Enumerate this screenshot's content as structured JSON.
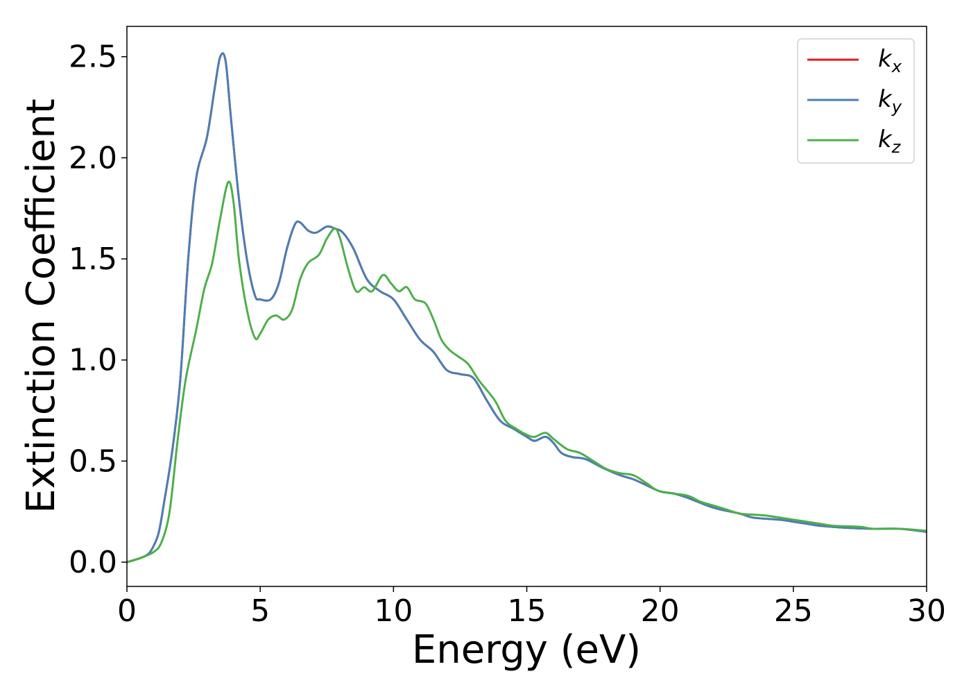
{
  "chart_data": {
    "type": "line",
    "xlabel": "Energy (eV)",
    "ylabel": "Extinction Coefficient",
    "xlim": [
      0,
      30
    ],
    "ylim": [
      -0.12,
      2.65
    ],
    "xticks": [
      "0",
      "5",
      "10",
      "15",
      "20",
      "25",
      "30"
    ],
    "xtick_values": [
      0,
      5,
      10,
      15,
      20,
      25,
      30
    ],
    "yticks": [
      "0.0",
      "0.5",
      "1.0",
      "1.5",
      "2.0",
      "2.5"
    ],
    "ytick_values": [
      0.0,
      0.5,
      1.0,
      1.5,
      2.0,
      2.5
    ],
    "grid": false,
    "legend_position": "top-right",
    "series": [
      {
        "name": "k_x",
        "label_main": "k",
        "label_sub": "x",
        "color": "#e41a1c",
        "points": [
          [
            0,
            0
          ],
          [
            0.5,
            0.02
          ],
          [
            0.8,
            0.04
          ],
          [
            1.0,
            0.08
          ],
          [
            1.2,
            0.15
          ],
          [
            1.4,
            0.3
          ],
          [
            1.7,
            0.55
          ],
          [
            2.0,
            0.9
          ],
          [
            2.3,
            1.5
          ],
          [
            2.6,
            1.9
          ],
          [
            3.0,
            2.1
          ],
          [
            3.3,
            2.35
          ],
          [
            3.5,
            2.5
          ],
          [
            3.7,
            2.48
          ],
          [
            3.9,
            2.2
          ],
          [
            4.2,
            1.8
          ],
          [
            4.5,
            1.5
          ],
          [
            4.8,
            1.32
          ],
          [
            5.0,
            1.3
          ],
          [
            5.4,
            1.3
          ],
          [
            5.7,
            1.38
          ],
          [
            6.0,
            1.55
          ],
          [
            6.3,
            1.67
          ],
          [
            6.5,
            1.68
          ],
          [
            6.8,
            1.64
          ],
          [
            7.1,
            1.63
          ],
          [
            7.5,
            1.66
          ],
          [
            7.8,
            1.65
          ],
          [
            8.1,
            1.63
          ],
          [
            8.5,
            1.55
          ],
          [
            9.0,
            1.4
          ],
          [
            9.5,
            1.34
          ],
          [
            10.0,
            1.3
          ],
          [
            10.5,
            1.2
          ],
          [
            11.0,
            1.1
          ],
          [
            11.5,
            1.04
          ],
          [
            12.0,
            0.95
          ],
          [
            12.5,
            0.93
          ],
          [
            13.0,
            0.91
          ],
          [
            13.5,
            0.8
          ],
          [
            14.0,
            0.7
          ],
          [
            14.5,
            0.66
          ],
          [
            15.0,
            0.62
          ],
          [
            15.3,
            0.6
          ],
          [
            15.7,
            0.62
          ],
          [
            16.0,
            0.59
          ],
          [
            16.3,
            0.54
          ],
          [
            16.7,
            0.52
          ],
          [
            17.2,
            0.51
          ],
          [
            17.8,
            0.47
          ],
          [
            18.5,
            0.43
          ],
          [
            19.0,
            0.41
          ],
          [
            19.5,
            0.38
          ],
          [
            20.0,
            0.35
          ],
          [
            20.5,
            0.34
          ],
          [
            21.0,
            0.32
          ],
          [
            22.0,
            0.27
          ],
          [
            23.0,
            0.24
          ],
          [
            23.5,
            0.22
          ],
          [
            24.5,
            0.21
          ],
          [
            25.0,
            0.2
          ],
          [
            25.5,
            0.19
          ],
          [
            26.0,
            0.18
          ],
          [
            27.0,
            0.17
          ],
          [
            28.0,
            0.165
          ],
          [
            29.0,
            0.165
          ],
          [
            30.0,
            0.15
          ]
        ]
      },
      {
        "name": "k_y",
        "label_main": "k",
        "label_sub": "y",
        "color": "#4a7fb5",
        "points": [
          [
            0,
            0
          ],
          [
            0.5,
            0.02
          ],
          [
            0.8,
            0.04
          ],
          [
            1.0,
            0.08
          ],
          [
            1.2,
            0.15
          ],
          [
            1.4,
            0.3
          ],
          [
            1.7,
            0.55
          ],
          [
            2.0,
            0.9
          ],
          [
            2.3,
            1.5
          ],
          [
            2.6,
            1.9
          ],
          [
            3.0,
            2.1
          ],
          [
            3.3,
            2.35
          ],
          [
            3.5,
            2.5
          ],
          [
            3.7,
            2.48
          ],
          [
            3.9,
            2.2
          ],
          [
            4.2,
            1.8
          ],
          [
            4.5,
            1.5
          ],
          [
            4.8,
            1.32
          ],
          [
            5.0,
            1.3
          ],
          [
            5.4,
            1.3
          ],
          [
            5.7,
            1.38
          ],
          [
            6.0,
            1.55
          ],
          [
            6.3,
            1.67
          ],
          [
            6.5,
            1.68
          ],
          [
            6.8,
            1.64
          ],
          [
            7.1,
            1.63
          ],
          [
            7.5,
            1.66
          ],
          [
            7.8,
            1.65
          ],
          [
            8.1,
            1.63
          ],
          [
            8.5,
            1.55
          ],
          [
            9.0,
            1.4
          ],
          [
            9.5,
            1.34
          ],
          [
            10.0,
            1.3
          ],
          [
            10.5,
            1.2
          ],
          [
            11.0,
            1.1
          ],
          [
            11.5,
            1.04
          ],
          [
            12.0,
            0.95
          ],
          [
            12.5,
            0.93
          ],
          [
            13.0,
            0.91
          ],
          [
            13.5,
            0.8
          ],
          [
            14.0,
            0.7
          ],
          [
            14.5,
            0.66
          ],
          [
            15.0,
            0.62
          ],
          [
            15.3,
            0.6
          ],
          [
            15.7,
            0.62
          ],
          [
            16.0,
            0.59
          ],
          [
            16.3,
            0.54
          ],
          [
            16.7,
            0.52
          ],
          [
            17.2,
            0.51
          ],
          [
            17.8,
            0.47
          ],
          [
            18.5,
            0.43
          ],
          [
            19.0,
            0.41
          ],
          [
            19.5,
            0.38
          ],
          [
            20.0,
            0.35
          ],
          [
            20.5,
            0.34
          ],
          [
            21.0,
            0.32
          ],
          [
            22.0,
            0.27
          ],
          [
            23.0,
            0.24
          ],
          [
            23.5,
            0.22
          ],
          [
            24.5,
            0.21
          ],
          [
            25.0,
            0.2
          ],
          [
            25.5,
            0.19
          ],
          [
            26.0,
            0.18
          ],
          [
            27.0,
            0.17
          ],
          [
            28.0,
            0.165
          ],
          [
            29.0,
            0.165
          ],
          [
            30.0,
            0.15
          ]
        ]
      },
      {
        "name": "k_z",
        "label_main": "k",
        "label_sub": "z",
        "color": "#4daf4a",
        "points": [
          [
            0,
            0
          ],
          [
            0.5,
            0.02
          ],
          [
            1.0,
            0.05
          ],
          [
            1.3,
            0.1
          ],
          [
            1.6,
            0.25
          ],
          [
            1.9,
            0.6
          ],
          [
            2.2,
            0.9
          ],
          [
            2.6,
            1.15
          ],
          [
            2.9,
            1.35
          ],
          [
            3.2,
            1.48
          ],
          [
            3.5,
            1.7
          ],
          [
            3.8,
            1.88
          ],
          [
            4.0,
            1.78
          ],
          [
            4.2,
            1.5
          ],
          [
            4.5,
            1.25
          ],
          [
            4.8,
            1.11
          ],
          [
            5.0,
            1.13
          ],
          [
            5.3,
            1.2
          ],
          [
            5.6,
            1.22
          ],
          [
            5.9,
            1.2
          ],
          [
            6.2,
            1.25
          ],
          [
            6.5,
            1.4
          ],
          [
            6.8,
            1.48
          ],
          [
            7.2,
            1.52
          ],
          [
            7.5,
            1.6
          ],
          [
            7.8,
            1.65
          ],
          [
            8.0,
            1.6
          ],
          [
            8.3,
            1.45
          ],
          [
            8.6,
            1.34
          ],
          [
            8.9,
            1.36
          ],
          [
            9.2,
            1.34
          ],
          [
            9.6,
            1.42
          ],
          [
            9.9,
            1.38
          ],
          [
            10.2,
            1.34
          ],
          [
            10.5,
            1.36
          ],
          [
            10.8,
            1.3
          ],
          [
            11.2,
            1.28
          ],
          [
            11.5,
            1.2
          ],
          [
            11.8,
            1.1
          ],
          [
            12.1,
            1.05
          ],
          [
            12.4,
            1.02
          ],
          [
            12.8,
            0.98
          ],
          [
            13.2,
            0.9
          ],
          [
            13.8,
            0.8
          ],
          [
            14.2,
            0.7
          ],
          [
            14.6,
            0.66
          ],
          [
            15.0,
            0.63
          ],
          [
            15.3,
            0.62
          ],
          [
            15.7,
            0.64
          ],
          [
            16.0,
            0.61
          ],
          [
            16.5,
            0.56
          ],
          [
            17.0,
            0.54
          ],
          [
            17.5,
            0.5
          ],
          [
            18.0,
            0.46
          ],
          [
            18.5,
            0.44
          ],
          [
            19.0,
            0.43
          ],
          [
            19.5,
            0.39
          ],
          [
            20.0,
            0.35
          ],
          [
            21.0,
            0.33
          ],
          [
            21.5,
            0.3
          ],
          [
            22.0,
            0.28
          ],
          [
            22.5,
            0.26
          ],
          [
            23.0,
            0.24
          ],
          [
            23.5,
            0.235
          ],
          [
            24.0,
            0.23
          ],
          [
            25.0,
            0.21
          ],
          [
            25.5,
            0.2
          ],
          [
            26.0,
            0.19
          ],
          [
            26.5,
            0.18
          ],
          [
            27.5,
            0.175
          ],
          [
            28.0,
            0.165
          ],
          [
            29.0,
            0.165
          ],
          [
            30.0,
            0.155
          ]
        ]
      }
    ]
  }
}
